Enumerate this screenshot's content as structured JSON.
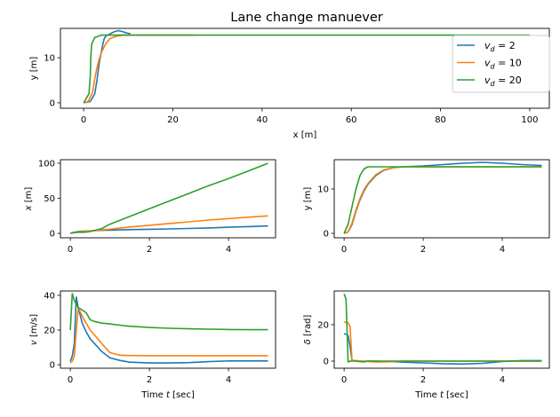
{
  "title": "Lane change manuever",
  "colors": {
    "vd2": "#1f77b4",
    "vd10": "#ff7f0e",
    "vd20": "#2ca02c"
  },
  "chart_data": [
    {
      "id": "trajectory",
      "type": "line",
      "title": "Lane change manuever",
      "xlabel": "x [m]",
      "ylabel": "y [m]",
      "xlim": [
        -5.2,
        104.4
      ],
      "ylim": [
        -1.2,
        16.5
      ],
      "xticks": [
        0,
        20,
        40,
        60,
        80,
        100
      ],
      "yticks": [
        0,
        10
      ],
      "legend": "top-right",
      "series": [
        {
          "name": "v_d = 2",
          "color": "#1f77b4",
          "x": [
            0,
            1.5,
            2.5,
            3,
            3.3,
            3.6,
            3.9,
            4.3,
            4.6,
            5,
            5.3,
            5.8,
            6.3,
            7,
            7.8,
            8.7,
            9.6,
            10.5
          ],
          "y": [
            0,
            0.3,
            2,
            5,
            7.5,
            9.5,
            11,
            13,
            14.2,
            14.8,
            15,
            15.2,
            15.5,
            15.8,
            16,
            15.8,
            15.5,
            15.3
          ]
        },
        {
          "name": "v_d = 10",
          "color": "#ff7f0e",
          "x": [
            0,
            1,
            2,
            2.5,
            3,
            3.5,
            4,
            5,
            6,
            7.5,
            9,
            11.5,
            14,
            16.5,
            19,
            21,
            23,
            25
          ],
          "y": [
            0,
            0.3,
            2.3,
            5.3,
            7.8,
            9.8,
            11.2,
            13.2,
            14.3,
            14.8,
            15,
            15,
            15,
            15,
            15,
            15,
            15,
            15
          ]
        },
        {
          "name": "v_d = 20",
          "color": "#2ca02c",
          "x": [
            0,
            1.2,
            1.5,
            1.6,
            1.8,
            2.5,
            4,
            7,
            13,
            18.5,
            24,
            35,
            46,
            57,
            68,
            78,
            89,
            100
          ],
          "y": [
            0,
            2,
            6,
            10,
            13,
            14.5,
            15,
            15,
            15,
            15,
            15,
            15,
            15,
            15,
            15,
            15,
            15,
            15
          ]
        }
      ]
    },
    {
      "id": "x-vs-time",
      "type": "line",
      "xlabel": "",
      "ylabel": "x [m]",
      "xlim": [
        -0.25,
        5.19
      ],
      "ylim": [
        -6.3,
        105
      ],
      "xticks": [
        0,
        2,
        4
      ],
      "yticks": [
        0,
        50,
        100
      ],
      "t": [
        0,
        0.1,
        0.2,
        0.3,
        0.4,
        0.5,
        0.6,
        0.8,
        1,
        1.25,
        1.5,
        2,
        2.5,
        3,
        3.5,
        4,
        4.5,
        5
      ],
      "series": [
        {
          "color": "#1f77b4",
          "values": [
            0,
            1.5,
            2.5,
            3,
            3.3,
            3.6,
            3.9,
            4.3,
            4.6,
            5,
            5.3,
            5.8,
            6.3,
            7,
            7.8,
            8.7,
            9.6,
            10.5
          ]
        },
        {
          "color": "#ff7f0e",
          "values": [
            0,
            1,
            2,
            2.5,
            3,
            3.5,
            4,
            5,
            6,
            7.5,
            9,
            11.5,
            14,
            16.5,
            19,
            21,
            23,
            25
          ]
        },
        {
          "color": "#2ca02c",
          "values": [
            0,
            1.2,
            1.5,
            1.6,
            1.8,
            2.5,
            4,
            7,
            13,
            18.5,
            24,
            35,
            46,
            57,
            68,
            78,
            89,
            100
          ]
        }
      ]
    },
    {
      "id": "y-vs-time",
      "type": "line",
      "xlabel": "",
      "ylabel": "y [m]",
      "xlim": [
        -0.25,
        5.19
      ],
      "ylim": [
        -1,
        16.6
      ],
      "xticks": [
        0,
        2,
        4
      ],
      "yticks": [
        0,
        10
      ],
      "t": [
        0,
        0.1,
        0.2,
        0.3,
        0.4,
        0.5,
        0.6,
        0.8,
        1,
        1.25,
        1.5,
        2,
        2.5,
        3,
        3.5,
        4,
        4.5,
        5
      ],
      "series": [
        {
          "color": "#1f77b4",
          "values": [
            0,
            0.3,
            2,
            5,
            7.5,
            9.5,
            11,
            13,
            14.2,
            14.8,
            15,
            15.2,
            15.5,
            15.8,
            16,
            15.8,
            15.5,
            15.3
          ]
        },
        {
          "color": "#ff7f0e",
          "values": [
            0,
            0.3,
            2.3,
            5.3,
            7.8,
            9.8,
            11.2,
            13.2,
            14.3,
            14.8,
            15,
            15,
            15,
            15,
            15,
            15,
            15,
            15
          ]
        },
        {
          "color": "#2ca02c",
          "values": [
            0,
            2,
            6,
            10,
            13,
            14.5,
            15,
            15,
            15,
            15,
            15,
            15,
            15,
            15,
            15,
            15,
            15,
            15
          ]
        }
      ]
    },
    {
      "id": "v-vs-time",
      "type": "line",
      "xlabel": "Time t [sec]",
      "ylabel": "v [m/s]",
      "xlim": [
        -0.25,
        5.19
      ],
      "ylim": [
        -2,
        42.5
      ],
      "xticks": [
        0,
        2,
        4
      ],
      "yticks": [
        0,
        20,
        40
      ],
      "t": [
        0,
        0.05,
        0.1,
        0.15,
        0.2,
        0.3,
        0.4,
        0.5,
        0.6,
        0.8,
        1,
        1.25,
        1.5,
        2,
        2.5,
        3,
        3.5,
        4,
        4.5,
        5
      ],
      "series": [
        {
          "color": "#1f77b4",
          "values": [
            2,
            5,
            12,
            39,
            33,
            24,
            19,
            15,
            12.5,
            7.5,
            4,
            2.5,
            1.5,
            1,
            1,
            1.2,
            1.8,
            2.2,
            2.2,
            2.2
          ]
        },
        {
          "color": "#ff7f0e",
          "values": [
            1,
            2,
            5,
            20,
            33,
            28,
            24,
            20,
            17.5,
            12,
            7,
            5.5,
            5.3,
            5.2,
            5.2,
            5.2,
            5.2,
            5.2,
            5.2,
            5.2
          ]
        },
        {
          "color": "#2ca02c",
          "values": [
            20,
            41,
            37,
            35,
            33,
            31.5,
            30,
            26,
            25,
            24,
            23.5,
            22.8,
            22.2,
            21.5,
            21,
            20.7,
            20.5,
            20.3,
            20.2,
            20.2
          ]
        }
      ]
    },
    {
      "id": "delta-vs-time",
      "type": "line",
      "xlabel": "Time t [sec]",
      "ylabel": "δ [rad]",
      "xlim": [
        -0.25,
        5.19
      ],
      "ylim": [
        -3.9,
        38.5
      ],
      "xticks": [
        0,
        2,
        4
      ],
      "yticks": [
        0,
        20
      ],
      "t": [
        0,
        0.05,
        0.1,
        0.15,
        0.2,
        0.3,
        0.4,
        0.5,
        0.6,
        0.8,
        1,
        1.25,
        1.5,
        2,
        2.5,
        3,
        3.5,
        4,
        4.5,
        5
      ],
      "series": [
        {
          "color": "#1f77b4",
          "values": [
            15,
            14.8,
            14,
            8,
            0.3,
            0,
            0,
            0,
            0,
            0,
            -0.2,
            -0.3,
            -0.6,
            -1,
            -1.4,
            -1.6,
            -1.2,
            -0.2,
            0.3,
            0.3
          ]
        },
        {
          "color": "#ff7f0e",
          "values": [
            21.5,
            21.3,
            21,
            19,
            0.5,
            0.3,
            0,
            0,
            -0.2,
            -0.5,
            -0.5,
            -0.2,
            0,
            0,
            0,
            0,
            0,
            0,
            0,
            0
          ]
        },
        {
          "color": "#2ca02c",
          "values": [
            37,
            34,
            -0.5,
            0,
            0,
            0,
            -0.3,
            -0.5,
            0,
            0,
            0,
            0,
            0,
            0,
            0,
            0,
            0,
            0,
            0,
            0
          ]
        }
      ]
    }
  ]
}
